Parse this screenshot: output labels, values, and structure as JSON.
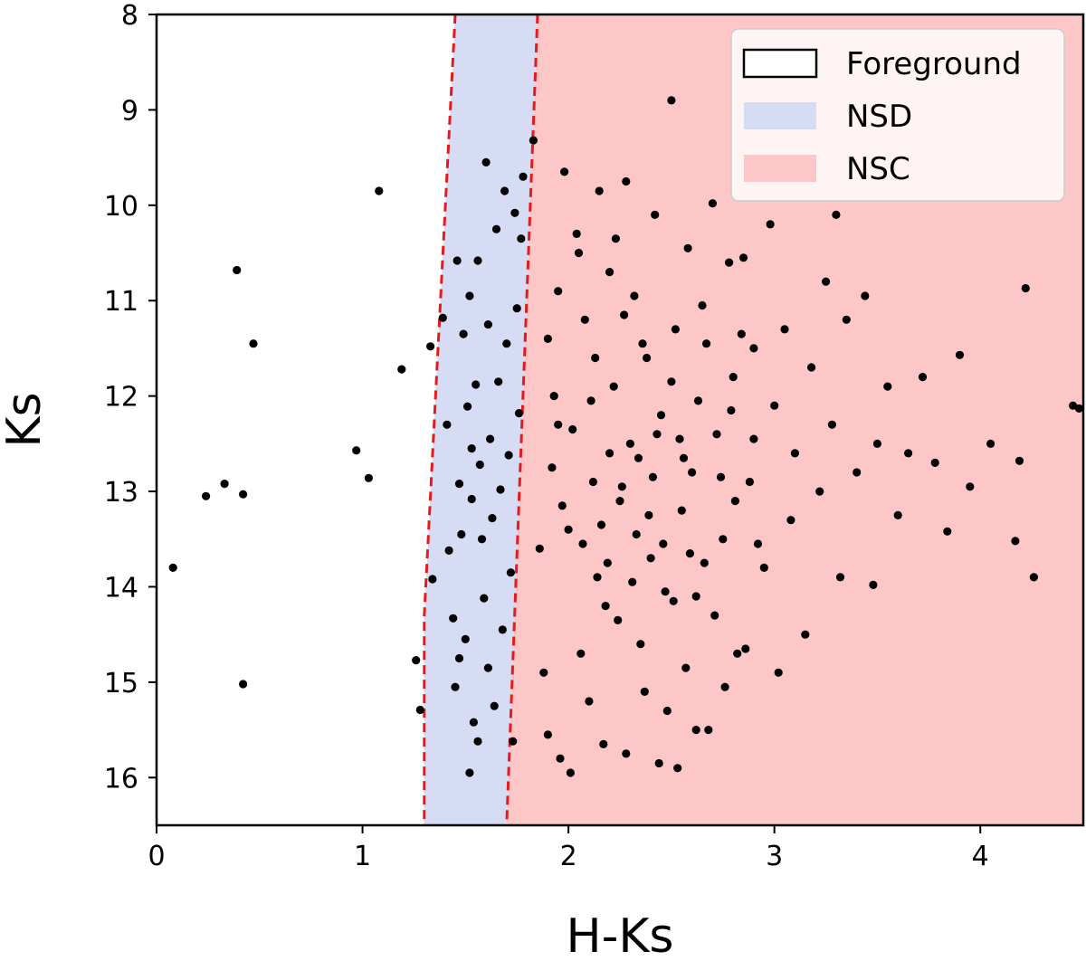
{
  "chart_data": {
    "type": "scatter",
    "title": "",
    "xlabel": "H-Ks",
    "ylabel": "Ks",
    "xlim": [
      0,
      4.5
    ],
    "ylim": [
      16.5,
      8
    ],
    "y_inverted": true,
    "grid": false,
    "xticks": [
      0,
      1,
      2,
      3,
      4
    ],
    "xtick_labels": [
      "0",
      "1",
      "2",
      "3",
      "4"
    ],
    "yticks": [
      8,
      9,
      10,
      11,
      12,
      13,
      14,
      15,
      16
    ],
    "ytick_labels": [
      "8",
      "9",
      "10",
      "11",
      "12",
      "13",
      "14",
      "15",
      "16"
    ],
    "legend_position": "top-right",
    "regions": [
      {
        "name": "Foreground",
        "color": "#ffffff",
        "edge": "#000000"
      },
      {
        "name": "NSD",
        "color": "#d5dcf4"
      },
      {
        "name": "NSC",
        "color": "#fec7c7"
      }
    ],
    "boundaries": [
      {
        "name": "foreground-nsd-boundary",
        "color": "#e41a1c",
        "style": "dashed",
        "points": [
          [
            1.45,
            8.0
          ],
          [
            1.3,
            14.3
          ],
          [
            1.3,
            16.5
          ]
        ]
      },
      {
        "name": "nsd-nsc-boundary",
        "color": "#e41a1c",
        "style": "dashed",
        "points": [
          [
            1.85,
            8.0
          ],
          [
            1.7,
            16.5
          ]
        ]
      }
    ],
    "series": [
      {
        "name": "Foreground stars",
        "color": "#000000",
        "points": [
          [
            0.08,
            13.8
          ],
          [
            0.24,
            13.05
          ],
          [
            0.33,
            12.92
          ],
          [
            0.39,
            10.68
          ],
          [
            0.42,
            13.03
          ],
          [
            0.47,
            11.45
          ],
          [
            0.42,
            15.02
          ],
          [
            0.97,
            12.57
          ],
          [
            1.03,
            12.86
          ],
          [
            1.08,
            9.85
          ],
          [
            1.19,
            11.72
          ],
          [
            1.26,
            14.77
          ],
          [
            1.28,
            15.29
          ]
        ]
      },
      {
        "name": "NSD stars",
        "color": "#000000",
        "points": [
          [
            1.33,
            11.48
          ],
          [
            1.34,
            13.92
          ],
          [
            1.39,
            11.18
          ],
          [
            1.41,
            12.3
          ],
          [
            1.42,
            13.62
          ],
          [
            1.44,
            14.33
          ],
          [
            1.45,
            15.05
          ],
          [
            1.46,
            10.58
          ],
          [
            1.47,
            12.92
          ],
          [
            1.48,
            13.45
          ],
          [
            1.49,
            11.35
          ],
          [
            1.5,
            14.55
          ],
          [
            1.51,
            12.11
          ],
          [
            1.52,
            10.95
          ],
          [
            1.53,
            13.08
          ],
          [
            1.54,
            15.42
          ],
          [
            1.55,
            11.88
          ],
          [
            1.56,
            10.58
          ],
          [
            1.57,
            12.72
          ],
          [
            1.58,
            13.5
          ],
          [
            1.59,
            14.12
          ],
          [
            1.6,
            9.55
          ],
          [
            1.61,
            11.25
          ],
          [
            1.62,
            12.45
          ],
          [
            1.63,
            13.28
          ],
          [
            1.64,
            15.25
          ],
          [
            1.65,
            10.25
          ],
          [
            1.66,
            11.85
          ],
          [
            1.67,
            12.98
          ],
          [
            1.68,
            14.45
          ],
          [
            1.69,
            9.85
          ],
          [
            1.7,
            11.45
          ],
          [
            1.71,
            12.62
          ],
          [
            1.72,
            13.85
          ],
          [
            1.73,
            15.62
          ],
          [
            1.74,
            10.08
          ],
          [
            1.75,
            11.08
          ],
          [
            1.76,
            12.18
          ],
          [
            1.77,
            10.35
          ],
          [
            1.78,
            9.7
          ],
          [
            1.52,
            15.95
          ],
          [
            1.56,
            15.62
          ],
          [
            1.61,
            14.85
          ],
          [
            1.47,
            14.75
          ],
          [
            1.53,
            12.55
          ]
        ]
      },
      {
        "name": "NSC stars",
        "color": "#000000",
        "points": [
          [
            1.83,
            9.32
          ],
          [
            1.9,
            11.4
          ],
          [
            1.95,
            12.3
          ],
          [
            1.98,
            9.65
          ],
          [
            2.0,
            13.4
          ],
          [
            2.04,
            10.3
          ],
          [
            2.08,
            11.2
          ],
          [
            2.12,
            12.9
          ],
          [
            2.15,
            9.85
          ],
          [
            2.18,
            14.2
          ],
          [
            2.2,
            10.7
          ],
          [
            2.22,
            11.9
          ],
          [
            2.25,
            13.1
          ],
          [
            2.28,
            9.75
          ],
          [
            2.3,
            12.5
          ],
          [
            2.32,
            10.95
          ],
          [
            2.35,
            14.6
          ],
          [
            2.38,
            11.6
          ],
          [
            2.4,
            13.7
          ],
          [
            2.42,
            10.1
          ],
          [
            2.45,
            12.2
          ],
          [
            2.48,
            15.3
          ],
          [
            2.5,
            8.9
          ],
          [
            2.52,
            11.3
          ],
          [
            2.55,
            13.2
          ],
          [
            2.58,
            10.45
          ],
          [
            2.6,
            12.8
          ],
          [
            2.62,
            14.1
          ],
          [
            2.65,
            11.05
          ],
          [
            2.68,
            15.5
          ],
          [
            2.7,
            9.98
          ],
          [
            2.72,
            12.4
          ],
          [
            2.75,
            13.5
          ],
          [
            2.78,
            10.6
          ],
          [
            2.8,
            11.8
          ],
          [
            2.82,
            14.7
          ],
          [
            2.85,
            10.55
          ],
          [
            2.88,
            12.9
          ],
          [
            2.9,
            11.5
          ],
          [
            2.95,
            13.8
          ],
          [
            2.98,
            10.2
          ],
          [
            3.0,
            12.1
          ],
          [
            3.02,
            14.9
          ],
          [
            3.05,
            11.3
          ],
          [
            3.08,
            13.3
          ],
          [
            3.1,
            12.6
          ],
          [
            3.15,
            14.5
          ],
          [
            3.18,
            11.7
          ],
          [
            3.22,
            13.0
          ],
          [
            3.25,
            10.8
          ],
          [
            3.28,
            12.3
          ],
          [
            3.3,
            10.1
          ],
          [
            3.32,
            13.9
          ],
          [
            3.35,
            11.2
          ],
          [
            3.4,
            12.8
          ],
          [
            3.44,
            10.95
          ],
          [
            3.48,
            13.98
          ],
          [
            3.5,
            12.5
          ],
          [
            3.55,
            11.9
          ],
          [
            3.6,
            13.25
          ],
          [
            3.65,
            12.6
          ],
          [
            3.72,
            11.8
          ],
          [
            3.78,
            12.7
          ],
          [
            3.84,
            13.42
          ],
          [
            3.9,
            11.57
          ],
          [
            3.95,
            12.95
          ],
          [
            4.05,
            12.5
          ],
          [
            4.17,
            13.52
          ],
          [
            4.19,
            12.68
          ],
          [
            4.22,
            10.87
          ],
          [
            4.26,
            13.9
          ],
          [
            4.45,
            12.1
          ],
          [
            4.48,
            12.13
          ],
          [
            1.86,
            13.6
          ],
          [
            1.88,
            14.9
          ],
          [
            1.9,
            15.55
          ],
          [
            1.93,
            12.0
          ],
          [
            1.96,
            15.8
          ],
          [
            2.01,
            15.95
          ],
          [
            2.06,
            14.7
          ],
          [
            2.1,
            15.2
          ],
          [
            2.14,
            13.9
          ],
          [
            2.17,
            15.65
          ],
          [
            2.2,
            12.6
          ],
          [
            2.24,
            14.35
          ],
          [
            2.28,
            15.75
          ],
          [
            2.33,
            13.45
          ],
          [
            2.37,
            15.1
          ],
          [
            2.41,
            12.85
          ],
          [
            2.44,
            15.85
          ],
          [
            2.47,
            14.05
          ],
          [
            2.53,
            15.9
          ],
          [
            2.57,
            14.85
          ],
          [
            2.62,
            15.5
          ],
          [
            2.66,
            13.75
          ],
          [
            2.71,
            14.3
          ],
          [
            2.76,
            15.05
          ],
          [
            2.81,
            13.1
          ],
          [
            2.86,
            14.65
          ],
          [
            2.92,
            13.55
          ],
          [
            1.95,
            10.9
          ],
          [
            2.05,
            10.5
          ],
          [
            2.13,
            11.6
          ],
          [
            2.23,
            10.35
          ],
          [
            2.27,
            11.15
          ],
          [
            2.36,
            11.45
          ],
          [
            2.43,
            12.4
          ],
          [
            2.5,
            11.85
          ],
          [
            2.56,
            12.65
          ],
          [
            2.63,
            12.05
          ],
          [
            2.67,
            11.45
          ],
          [
            2.74,
            12.85
          ],
          [
            2.79,
            12.15
          ],
          [
            2.84,
            11.35
          ],
          [
            2.9,
            12.45
          ],
          [
            1.92,
            12.75
          ],
          [
            1.97,
            13.15
          ],
          [
            2.02,
            12.35
          ],
          [
            2.07,
            13.55
          ],
          [
            2.11,
            12.05
          ],
          [
            2.16,
            13.35
          ],
          [
            2.19,
            13.75
          ],
          [
            2.26,
            12.95
          ],
          [
            2.31,
            13.95
          ],
          [
            2.34,
            12.65
          ],
          [
            2.39,
            13.25
          ],
          [
            2.46,
            13.55
          ],
          [
            2.51,
            14.15
          ],
          [
            2.54,
            12.45
          ],
          [
            2.59,
            13.65
          ]
        ]
      }
    ]
  }
}
